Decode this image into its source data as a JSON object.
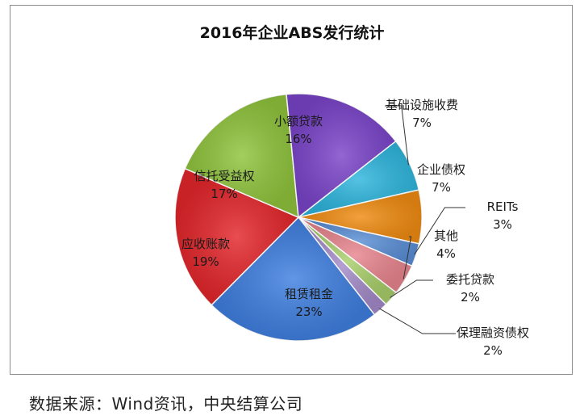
{
  "chart_data": {
    "type": "pie",
    "title": "2016年企业ABS发行统计",
    "slices": [
      {
        "name": "基础设施收费",
        "value": 7,
        "label": "7%",
        "color": "#2fb6dd"
      },
      {
        "name": "企业债权",
        "value": 7,
        "label": "7%",
        "color": "#f08c12"
      },
      {
        "name": "REITs",
        "value": 3,
        "label": "3%",
        "color": "#5b8fd6"
      },
      {
        "name": "其他",
        "value": 4,
        "label": "4%",
        "color": "#e8858e"
      },
      {
        "name": "委托贷款",
        "value": 2,
        "label": "2%",
        "color": "#a9cf6b"
      },
      {
        "name": "保理融资债权",
        "value": 2,
        "label": "2%",
        "color": "#a48bc9"
      },
      {
        "name": "租赁租金",
        "value": 23,
        "label": "23%",
        "color": "#3f7fe0"
      },
      {
        "name": "应收账款",
        "value": 19,
        "label": "19%",
        "color": "#e3262b"
      },
      {
        "name": "信托受益权",
        "value": 17,
        "label": "17%",
        "color": "#8fc43c"
      },
      {
        "name": "小额贷款",
        "value": 16,
        "label": "16%",
        "color": "#7a44c9"
      }
    ]
  },
  "source": "数据来源：Wind资讯，中央结算公司"
}
